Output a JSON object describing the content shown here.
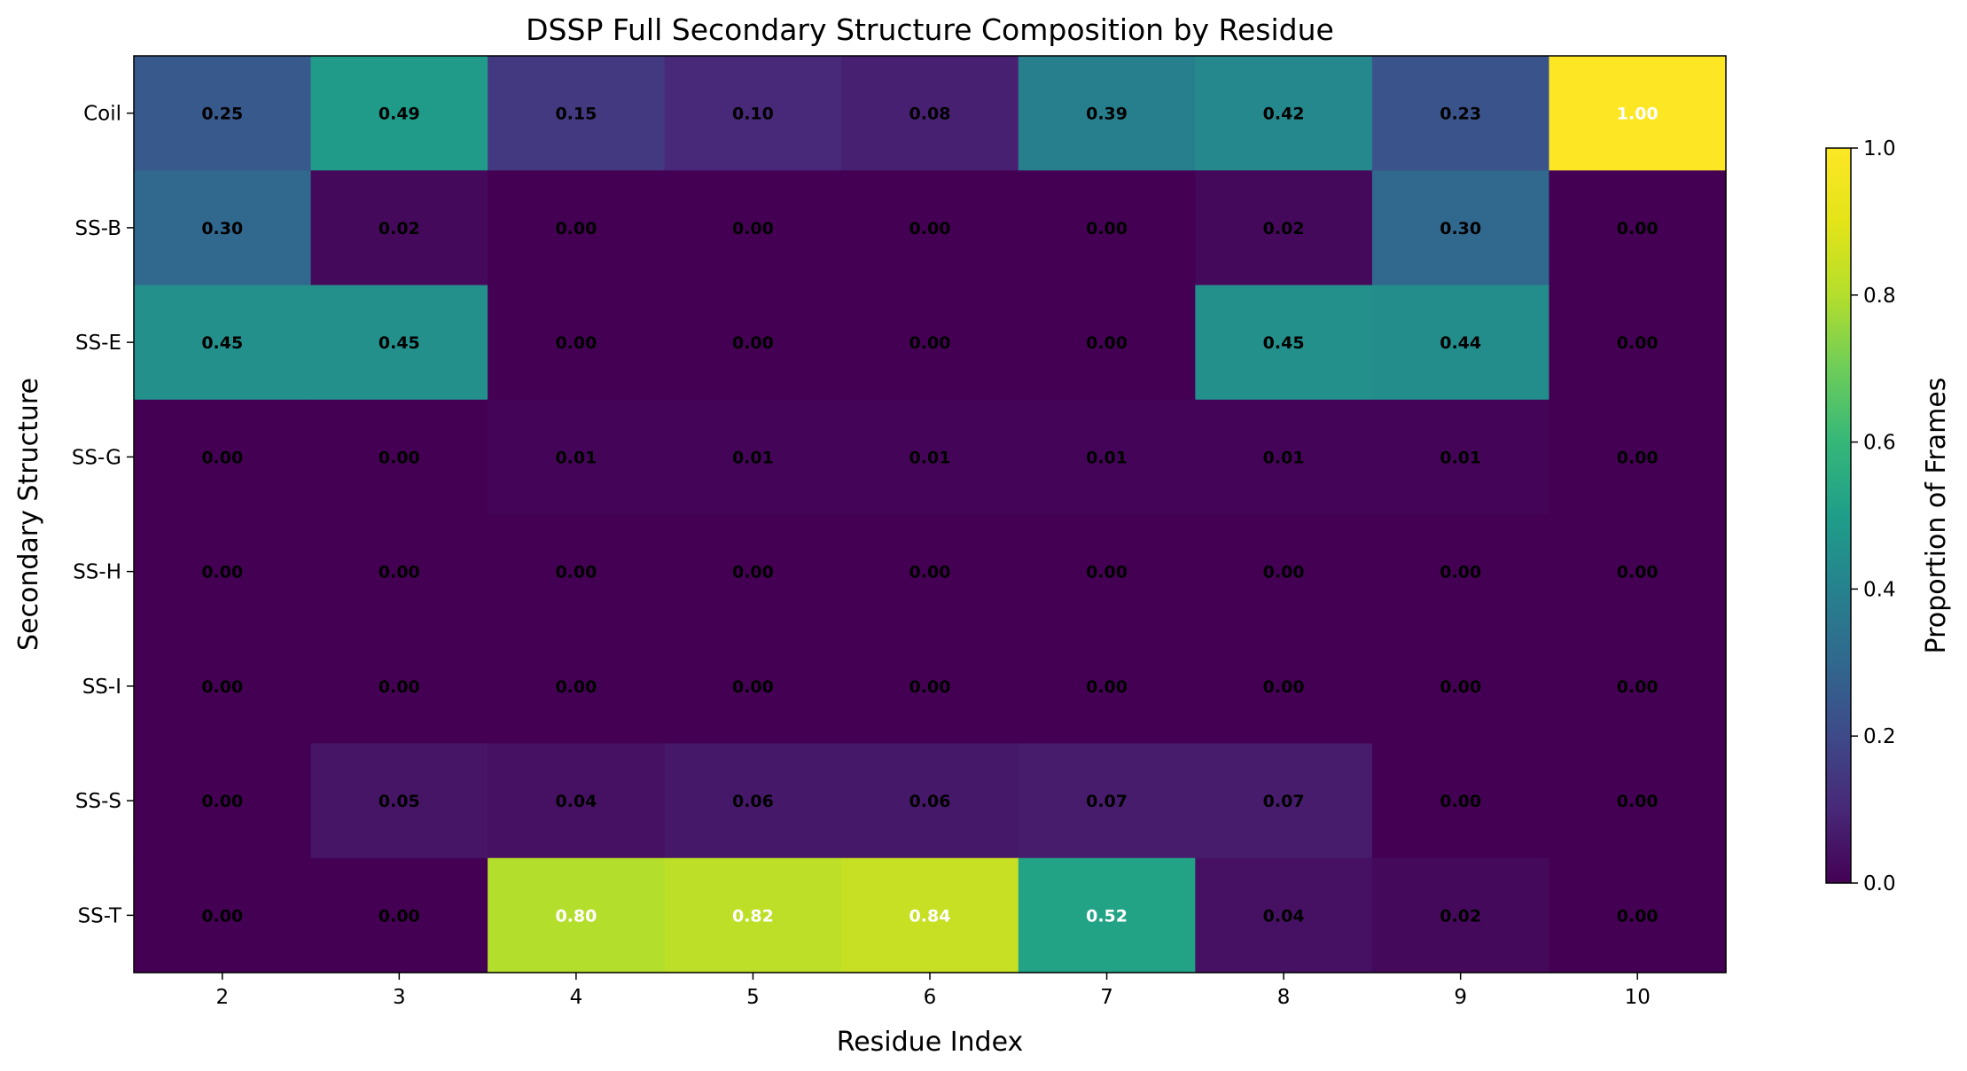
{
  "chart_data": {
    "type": "heatmap",
    "title": "DSSP Full Secondary Structure Composition by Residue",
    "xlabel": "Residue Index",
    "ylabel": "Secondary Structure",
    "x_categories": [
      "2",
      "3",
      "4",
      "5",
      "6",
      "7",
      "8",
      "9",
      "10"
    ],
    "y_categories": [
      "Coil",
      "SS-B",
      "SS-E",
      "SS-G",
      "SS-H",
      "SS-I",
      "SS-S",
      "SS-T"
    ],
    "values": [
      [
        0.25,
        0.49,
        0.15,
        0.1,
        0.08,
        0.39,
        0.42,
        0.23,
        1.0
      ],
      [
        0.3,
        0.02,
        0.0,
        0.0,
        0.0,
        0.0,
        0.02,
        0.3,
        0.0
      ],
      [
        0.45,
        0.45,
        0.0,
        0.0,
        0.0,
        0.0,
        0.45,
        0.44,
        0.0
      ],
      [
        0.0,
        0.0,
        0.01,
        0.01,
        0.01,
        0.01,
        0.01,
        0.01,
        0.0
      ],
      [
        0.0,
        0.0,
        0.0,
        0.0,
        0.0,
        0.0,
        0.0,
        0.0,
        0.0
      ],
      [
        0.0,
        0.0,
        0.0,
        0.0,
        0.0,
        0.0,
        0.0,
        0.0,
        0.0
      ],
      [
        0.0,
        0.05,
        0.04,
        0.06,
        0.06,
        0.07,
        0.07,
        0.0,
        0.0
      ],
      [
        0.0,
        0.0,
        0.8,
        0.82,
        0.84,
        0.52,
        0.04,
        0.02,
        0.0
      ]
    ],
    "colormap": "viridis",
    "vmin": 0.0,
    "vmax": 1.0,
    "colorbar": {
      "label": "Proportion of Frames",
      "ticks": [
        "0.0",
        "0.2",
        "0.4",
        "0.6",
        "0.8",
        "1.0"
      ]
    },
    "annotations": "values shown in each cell with two decimals",
    "grid": false
  }
}
